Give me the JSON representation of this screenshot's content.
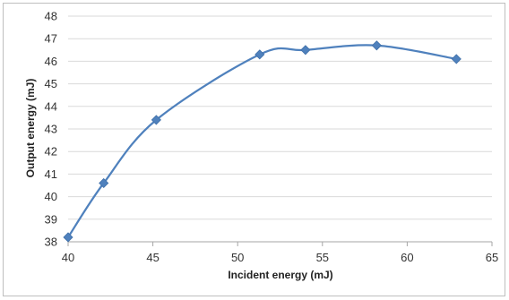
{
  "chart_data": {
    "type": "line",
    "title": "",
    "xlabel": "Incident energy (mJ)",
    "ylabel": "Output energy (mJ)",
    "xlim": [
      40,
      65
    ],
    "ylim": [
      38,
      48
    ],
    "x_ticks": [
      "40",
      "45",
      "50",
      "55",
      "60",
      "65"
    ],
    "y_ticks": [
      "38",
      "39",
      "40",
      "41",
      "42",
      "43",
      "44",
      "45",
      "46",
      "47",
      "48"
    ],
    "grid": "horizontal",
    "legend": "none",
    "smoothed": true,
    "marker": "diamond",
    "series": [
      {
        "color": "#4f81bd",
        "x": [
          40.0,
          42.1,
          45.2,
          51.3,
          54.0,
          58.2,
          62.9
        ],
        "y": [
          38.2,
          40.6,
          43.4,
          46.3,
          46.5,
          46.7,
          46.1
        ]
      }
    ]
  }
}
